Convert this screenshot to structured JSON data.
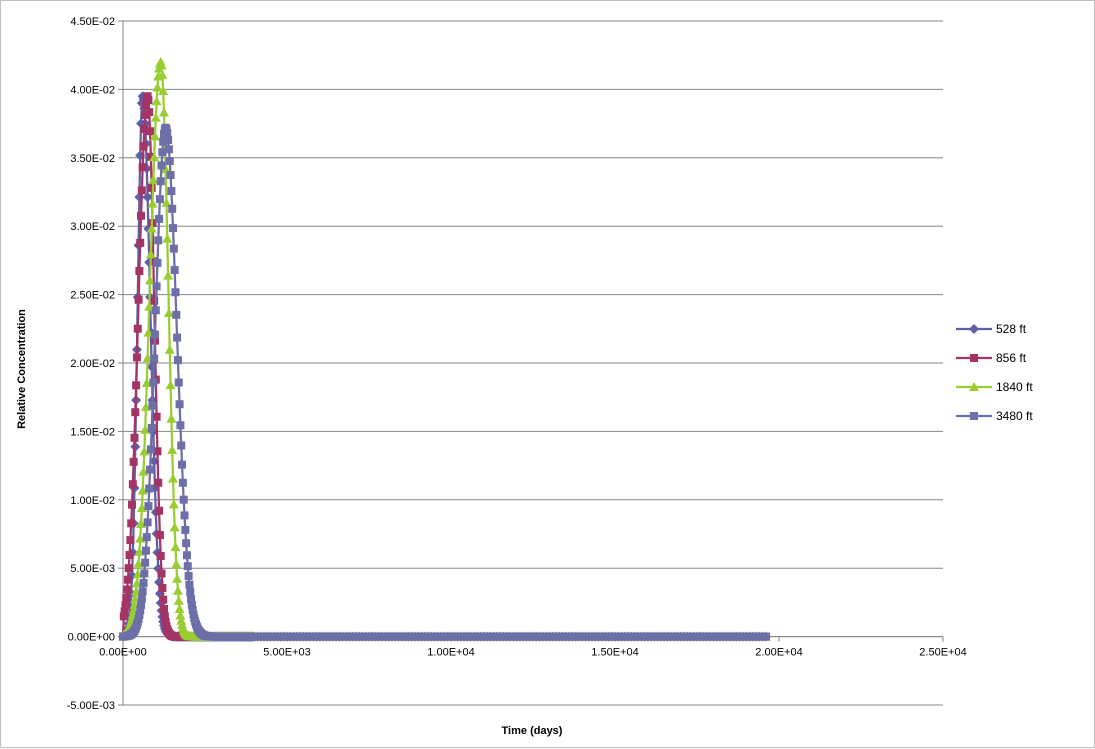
{
  "chart_data": {
    "type": "scatter",
    "title": "",
    "xlabel": "Time (days)",
    "ylabel": "Relative Concentration",
    "xlim": [
      0,
      25000
    ],
    "ylim": [
      -0.005,
      0.045
    ],
    "xticks": [
      0,
      5000,
      10000,
      15000,
      20000,
      25000
    ],
    "xtick_labels": [
      "0.00E+00",
      "5.00E+03",
      "1.00E+04",
      "1.50E+04",
      "2.00E+04",
      "2.50E+04"
    ],
    "yticks": [
      -0.005,
      0,
      0.005,
      0.01,
      0.015,
      0.02,
      0.025,
      0.03,
      0.035,
      0.04,
      0.045
    ],
    "ytick_labels": [
      "-5.00E-03",
      "0.00E+00",
      "5.00E-03",
      "1.00E-02",
      "1.50E-02",
      "2.00E-02",
      "2.50E-02",
      "3.00E-02",
      "3.50E-02",
      "4.00E-02",
      "4.50E-02"
    ],
    "grid": "horizontal",
    "legend": "right",
    "x_end": 19600,
    "series": [
      {
        "name": "528 ft",
        "color": "#5f5fa8",
        "marker": "diamond",
        "peak": 0.0395,
        "t_peak": 600,
        "rise": 220,
        "decay": 330
      },
      {
        "name": "856 ft",
        "color": "#a33465",
        "marker": "square",
        "peak": 0.0395,
        "t_peak": 750,
        "rise": 400,
        "decay": 290
      },
      {
        "name": "1840 ft",
        "color": "#9acd32",
        "marker": "triangle",
        "peak": 0.042,
        "t_peak": 1150,
        "rise": 470,
        "decay": 330
      },
      {
        "name": "3480 ft",
        "color": "#6c6fa8",
        "marker": "square",
        "peak": 0.0372,
        "t_peak": 1300,
        "rise": 450,
        "decay": 480
      }
    ]
  }
}
